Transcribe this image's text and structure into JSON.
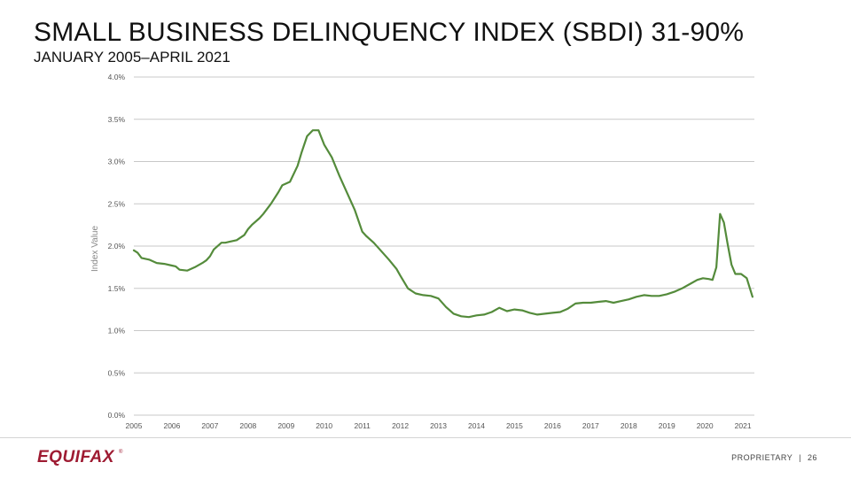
{
  "slide": {
    "title": "SMALL BUSINESS DELINQUENCY INDEX (SBDI) 31-90%",
    "subtitle": "JANUARY 2005–APRIL 2021"
  },
  "footer": {
    "logo": "EQUIFAX",
    "logo_mark": "®",
    "label": "PROPRIETARY",
    "separator": "|",
    "page_number": "26"
  },
  "colors": {
    "line": "#548b3b",
    "grid": "#c8c8c8",
    "axis_text": "#555555"
  },
  "chart_data": {
    "type": "line",
    "title": "",
    "xlabel": "",
    "ylabel": "Index Value",
    "xlim": [
      2005,
      2021.3
    ],
    "ylim": [
      0,
      4.0
    ],
    "grid": true,
    "x_ticks": [
      2005,
      2006,
      2007,
      2008,
      2009,
      2010,
      2011,
      2012,
      2013,
      2014,
      2015,
      2016,
      2017,
      2018,
      2019,
      2020,
      2021
    ],
    "x_tick_labels": [
      "2005",
      "2006",
      "2007",
      "2008",
      "2009",
      "2010",
      "2011",
      "2012",
      "2013",
      "2014",
      "2015",
      "2016",
      "2017",
      "2018",
      "2019",
      "2020",
      "2021"
    ],
    "y_ticks": [
      0,
      0.5,
      1.0,
      1.5,
      2.0,
      2.5,
      3.0,
      3.5,
      4.0
    ],
    "y_tick_labels": [
      "0.0%",
      "0.5%",
      "1.0%",
      "1.5%",
      "2.0%",
      "2.5%",
      "3.0%",
      "3.5%",
      "4.0%"
    ],
    "series": [
      {
        "name": "SBDI 31-90%",
        "x": [
          2005.0,
          2005.1,
          2005.2,
          2005.4,
          2005.6,
          2005.8,
          2006.0,
          2006.1,
          2006.2,
          2006.4,
          2006.6,
          2006.8,
          2006.9,
          2007.0,
          2007.1,
          2007.3,
          2007.4,
          2007.5,
          2007.7,
          2007.9,
          2008.0,
          2008.1,
          2008.3,
          2008.4,
          2008.6,
          2008.8,
          2008.9,
          2009.1,
          2009.3,
          2009.4,
          2009.55,
          2009.7,
          2009.85,
          2010.0,
          2010.2,
          2010.4,
          2010.6,
          2010.8,
          2011.0,
          2011.1,
          2011.3,
          2011.5,
          2011.7,
          2011.9,
          2012.0,
          2012.2,
          2012.4,
          2012.6,
          2012.8,
          2013.0,
          2013.2,
          2013.4,
          2013.6,
          2013.8,
          2014.0,
          2014.2,
          2014.4,
          2014.6,
          2014.8,
          2015.0,
          2015.2,
          2015.4,
          2015.6,
          2015.8,
          2016.0,
          2016.2,
          2016.4,
          2016.6,
          2016.8,
          2017.0,
          2017.2,
          2017.4,
          2017.6,
          2017.8,
          2018.0,
          2018.2,
          2018.4,
          2018.6,
          2018.8,
          2019.0,
          2019.2,
          2019.4,
          2019.6,
          2019.8,
          2019.95,
          2020.1,
          2020.2,
          2020.3,
          2020.4,
          2020.5,
          2020.6,
          2020.7,
          2020.8,
          2020.95,
          2021.1,
          2021.25
        ],
        "values": [
          1.95,
          1.92,
          1.86,
          1.84,
          1.8,
          1.79,
          1.77,
          1.76,
          1.72,
          1.71,
          1.75,
          1.8,
          1.83,
          1.88,
          1.96,
          2.04,
          2.04,
          2.05,
          2.07,
          2.13,
          2.2,
          2.25,
          2.33,
          2.38,
          2.5,
          2.64,
          2.72,
          2.76,
          2.95,
          3.1,
          3.3,
          3.37,
          3.37,
          3.2,
          3.05,
          2.83,
          2.63,
          2.43,
          2.17,
          2.12,
          2.04,
          1.94,
          1.84,
          1.73,
          1.65,
          1.5,
          1.44,
          1.42,
          1.41,
          1.38,
          1.28,
          1.2,
          1.17,
          1.16,
          1.18,
          1.19,
          1.22,
          1.27,
          1.23,
          1.25,
          1.24,
          1.21,
          1.19,
          1.2,
          1.21,
          1.22,
          1.26,
          1.32,
          1.33,
          1.33,
          1.34,
          1.35,
          1.33,
          1.35,
          1.37,
          1.4,
          1.42,
          1.41,
          1.41,
          1.43,
          1.46,
          1.5,
          1.55,
          1.6,
          1.62,
          1.61,
          1.6,
          1.75,
          2.38,
          2.28,
          2.02,
          1.78,
          1.67,
          1.67,
          1.62,
          1.4
        ]
      }
    ]
  }
}
